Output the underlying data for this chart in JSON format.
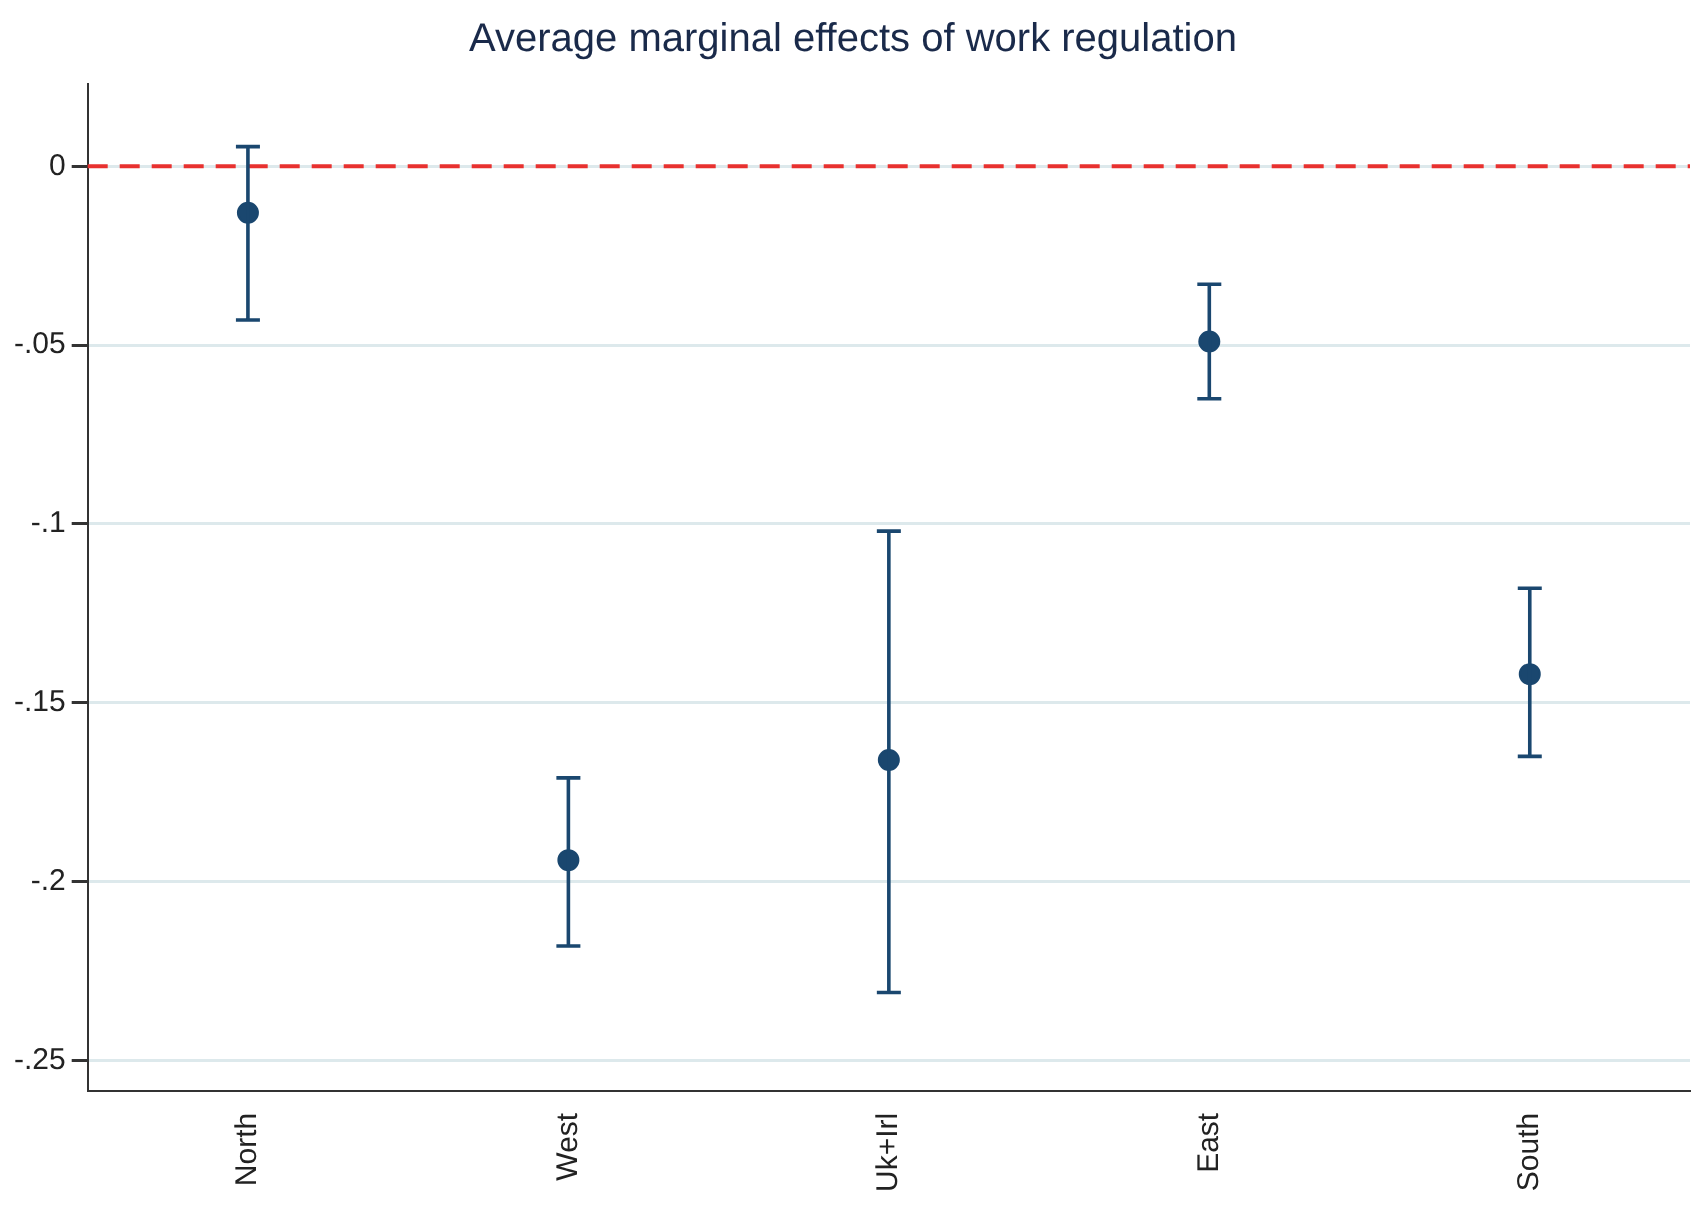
{
  "chart_data": {
    "type": "scatter",
    "title": "Average marginal effects of work regulation",
    "categories": [
      "North",
      "West",
      "Uk+Irl",
      "East",
      "South"
    ],
    "series": [
      {
        "color": "#1a476f",
        "values": [
          -0.013,
          -0.194,
          -0.166,
          -0.049,
          -0.142
        ],
        "errors": [
          [
            -0.043,
            0.0055
          ],
          [
            -0.218,
            -0.171
          ],
          [
            -0.231,
            -0.102
          ],
          [
            -0.065,
            -0.033
          ],
          [
            -0.165,
            -0.118
          ]
        ]
      }
    ],
    "ylim": [
      -0.2585,
      0.023
    ],
    "yticks": [
      0,
      {
        "value": -0.05,
        "label": "-.05"
      },
      {
        "value": -0.1,
        "label": "-.1"
      },
      {
        "value": -0.15,
        "label": "-.15"
      },
      {
        "value": -0.2,
        "label": "-.2"
      },
      {
        "value": -0.25,
        "label": "-.25"
      }
    ],
    "ref_lines": [
      {
        "axis": "y",
        "value": 0,
        "color": "#e8312f",
        "line_style": "dashed"
      }
    ],
    "grid": "y",
    "legend": false,
    "marker": "circle"
  }
}
